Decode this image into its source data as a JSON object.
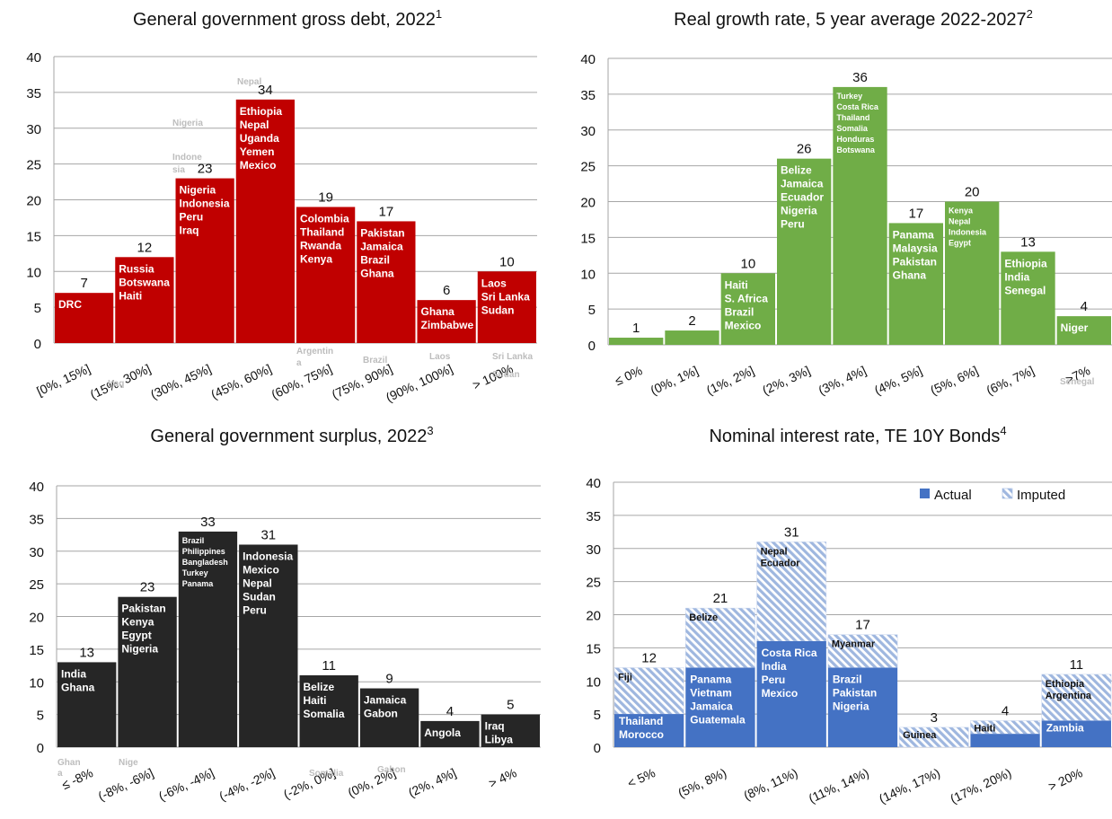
{
  "chart_data": [
    {
      "type": "bar",
      "title": "General government gross debt, 2022",
      "footnote": "1",
      "color": "#c00000",
      "categories": [
        "[0%, 15%]",
        "(15%, 30%]",
        "(30%, 45%]",
        "(45%, 60%]",
        "(60%, 75%]",
        "(75%, 90%]",
        "(90%, 100%]",
        "> 100%"
      ],
      "values": [
        7,
        12,
        23,
        34,
        19,
        17,
        6,
        10
      ],
      "ylim": [
        0,
        40
      ],
      "yticks": [
        0,
        5,
        10,
        15,
        20,
        25,
        30,
        35,
        40
      ],
      "grid": true,
      "bar_labels": [
        [
          "DRC"
        ],
        [
          "Russia",
          "Botswana",
          "Haiti"
        ],
        [
          "Nigeria",
          "Indonesia",
          "Peru",
          "Iraq"
        ],
        [
          "Ethiopia",
          "Nepal",
          "Uganda",
          "Yemen",
          "Mexico"
        ],
        [
          "Colombia",
          "Thailand",
          "Rwanda",
          "Kenya"
        ],
        [
          "Pakistan",
          "Jamaica",
          "Brazil",
          "Ghana"
        ],
        [
          "Ghana",
          "Zimbabwe"
        ],
        [
          "Laos",
          "Sri Lanka",
          "Sudan"
        ]
      ],
      "ghost_labels": [
        "Nepal",
        "Nigeria",
        "Indone",
        "sia",
        "Argentin",
        "a",
        "Brazil",
        "Laos",
        "Sri Lanka",
        "Sudan",
        "Iraq"
      ]
    },
    {
      "type": "bar",
      "title": "Real growth rate, 5 year average 2022-2027",
      "footnote": "2",
      "color": "#70ad47",
      "categories": [
        "≤ 0%",
        "(0%, 1%]",
        "(1%, 2%]",
        "(2%, 3%]",
        "(3%, 4%]",
        "(4%, 5%]",
        "(5%, 6%]",
        "(6%, 7%]",
        ">7%"
      ],
      "values": [
        1,
        2,
        10,
        26,
        36,
        17,
        20,
        13,
        4
      ],
      "ylim": [
        0,
        40
      ],
      "yticks": [
        0,
        5,
        10,
        15,
        20,
        25,
        30,
        35,
        40
      ],
      "grid": true,
      "bar_labels": [
        [],
        [],
        [
          "Haiti",
          "S. Africa",
          "Brazil",
          "Mexico"
        ],
        [
          "Belize",
          "Jamaica",
          "Ecuador",
          "Nigeria",
          "Peru"
        ],
        [
          "Turkey",
          "Costa  Rica",
          "Thailand",
          "Somalia",
          "Honduras",
          "Botswana"
        ],
        [
          "Panama",
          "Malaysia",
          "Pakistan",
          "Ghana"
        ],
        [
          "Kenya",
          "Nepal",
          "Indonesia",
          "Egypt"
        ],
        [
          "Ethiopia",
          "India",
          "Senegal"
        ],
        [
          "Niger"
        ]
      ],
      "ghost_labels": [
        "Senegal"
      ]
    },
    {
      "type": "bar",
      "title": "General government surplus, 2022",
      "footnote": "3",
      "color": "#262626",
      "categories": [
        "≤ -8%",
        "(-8%, -6%]",
        "(-6%, -4%]",
        "(-4%, -2%]",
        "(-2%, 0%]",
        "(0%, 2%]",
        "(2%, 4%]",
        "> 4%"
      ],
      "values": [
        13,
        23,
        33,
        31,
        11,
        9,
        4,
        5
      ],
      "ylim": [
        0,
        40
      ],
      "yticks": [
        0,
        5,
        10,
        15,
        20,
        25,
        30,
        35,
        40
      ],
      "grid": true,
      "bar_labels": [
        [
          "India",
          "Ghana"
        ],
        [
          "Pakistan",
          "Kenya",
          "Egypt",
          "Nigeria"
        ],
        [
          "Brazil",
          "Philippines",
          "Bangladesh",
          "Turkey",
          "Panama"
        ],
        [
          "Indonesia",
          "Mexico",
          "Nepal",
          "Sudan",
          "Peru"
        ],
        [
          "Belize",
          "Haiti",
          "Somalia"
        ],
        [
          "Jamaica",
          "Gabon"
        ],
        [
          "Angola"
        ],
        [
          "Iraq",
          "Libya"
        ]
      ],
      "ghost_labels": [
        "Ghan",
        "a",
        "Nige",
        "Somalia",
        "Gabon"
      ]
    },
    {
      "type": "bar",
      "subtype": "stacked",
      "title": "Nominal interest rate, TE 10Y Bonds",
      "footnote": "4",
      "categories": [
        "< 5%",
        "(5%, 8%)",
        "(8%, 11%)",
        "(11%, 14%)",
        "(14%, 17%)",
        "(17%, 20%)",
        "> 20%"
      ],
      "series": [
        {
          "name": "Actual",
          "values": [
            5,
            12,
            16,
            12,
            0,
            2,
            4
          ],
          "color": "#4472c4"
        },
        {
          "name": "Imputed",
          "values": [
            7,
            9,
            15,
            5,
            3,
            2,
            7
          ],
          "color": "#b4c7e7"
        }
      ],
      "totals": [
        12,
        21,
        31,
        17,
        3,
        4,
        11
      ],
      "ylim": [
        0,
        40
      ],
      "yticks": [
        0,
        5,
        10,
        15,
        20,
        25,
        30,
        35,
        40
      ],
      "grid": true,
      "legend": "top-right",
      "actual_labels": [
        [
          "Thailand",
          "Morocco"
        ],
        [
          "Panama",
          "Vietnam",
          "Jamaica",
          "Guatemala"
        ],
        [
          "Costa Rica",
          "India",
          "Peru",
          "Mexico"
        ],
        [
          "Brazil",
          "Pakistan",
          "Nigeria"
        ],
        [],
        [],
        [
          "Zambia"
        ]
      ],
      "imputed_labels": [
        [
          "Fiji"
        ],
        [
          "Belize"
        ],
        [
          "Nepal",
          "Ecuador"
        ],
        [
          "Myanmar"
        ],
        [
          "Guinea"
        ],
        [
          "Haiti"
        ],
        [
          "Ethiopia",
          "Argentina"
        ]
      ]
    }
  ]
}
